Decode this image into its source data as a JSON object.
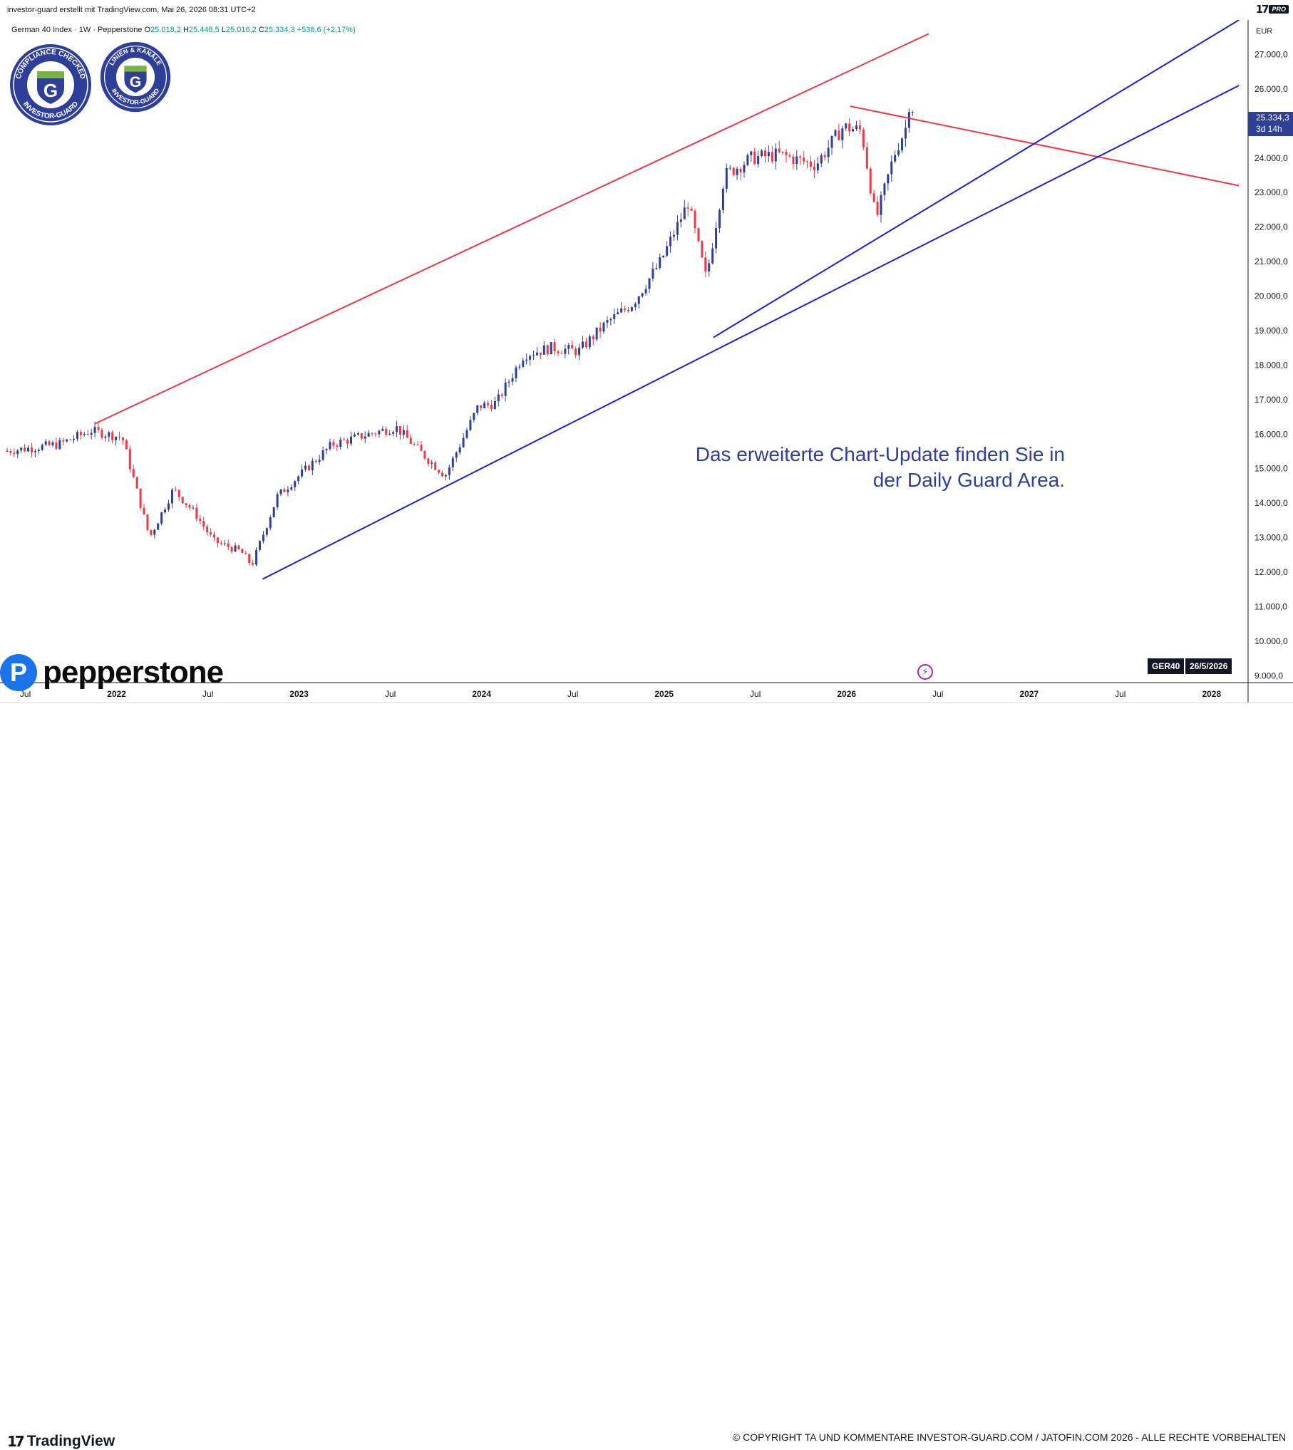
{
  "caption": "investor-guard erstellt mit TradingView.com, Mai 26, 2026 08:31 UTC+2",
  "brand": {
    "tv_mark": "17",
    "pro": "PRO",
    "footer_logo": "TradingView"
  },
  "symbol": {
    "name": "German 40 Index · 1W · Pepperstone",
    "o_label": "O",
    "o": "25.018,2",
    "h_label": "H",
    "h": "25.448,5",
    "l_label": "L",
    "l": "25.016,2",
    "c_label": "C",
    "c": "25.334,3",
    "chg": "+538,6 (+2,17%)"
  },
  "badges": [
    {
      "top": "COMPLIANCE CHECKED",
      "bottom": "INVESTOR-GUARD",
      "letter": "G"
    },
    {
      "top": "LINIEN & KANÄLE",
      "bottom": "INVESTOR-GUARD",
      "letter": "G"
    }
  ],
  "cta": {
    "line1": "Das erweiterte Chart-Update finden Sie in",
    "line2": "der Daily Guard Area."
  },
  "pepperstone": {
    "letter": "P",
    "word": "pepperstone"
  },
  "price_box": {
    "price": "25.334,3",
    "countdown": "3d 14h"
  },
  "tag": {
    "symbol": "GER40",
    "date": "26/5/2026"
  },
  "lightning_icon": "lightning-icon",
  "copyright": "© COPYRIGHT TA UND KOMMENTARE INVESTOR-GUARD.COM / JATOFIN.COM 2026 - ALLE RECHTE VORBEHALTEN",
  "colors": {
    "up": "#2e3f97",
    "down": "#f23645",
    "trend_red": "#f23645",
    "trend_blue": "#1f1fd6",
    "accent": "#2e3f97"
  },
  "chart_data": {
    "type": "candlestick",
    "title": "German 40 Index",
    "currency": "EUR",
    "ylim": [
      8800,
      28000
    ],
    "yticks": [
      "27.000,0",
      "26.000,0",
      "25.000,0",
      "24.000,0",
      "23.000,0",
      "22.000,0",
      "21.000,0",
      "20.000,0",
      "19.000,0",
      "18.000,0",
      "17.000,0",
      "16.000,0",
      "15.000,0",
      "14.000,0",
      "13.000,0",
      "12.000,0",
      "11.000,0",
      "10.000,0",
      "9.000,0"
    ],
    "ytick_values": [
      27000,
      26000,
      25000,
      24000,
      23000,
      22000,
      21000,
      20000,
      19000,
      18000,
      17000,
      16000,
      15000,
      14000,
      13000,
      12000,
      11000,
      10000,
      9000
    ],
    "xticks": [
      "Jul",
      "2022",
      "Jul",
      "2023",
      "Jul",
      "2024",
      "Jul",
      "2025",
      "Jul",
      "2026",
      "Jul",
      "2027",
      "Jul",
      "2028"
    ],
    "xtick_values": [
      2021.5,
      2022.0,
      2022.5,
      2023.0,
      2023.5,
      2024.0,
      2024.5,
      2025.0,
      2025.5,
      2026.0,
      2026.5,
      2027.0,
      2027.5,
      2028.0
    ],
    "xtick_bold": [
      false,
      true,
      false,
      true,
      false,
      true,
      false,
      true,
      false,
      true,
      false,
      true,
      false,
      true
    ],
    "xlim": [
      2021.4,
      2028.2
    ],
    "last_close": 25334.3,
    "anchors": [
      [
        2021.4,
        15500
      ],
      [
        2021.7,
        15700
      ],
      [
        2021.88,
        16100
      ],
      [
        2022.05,
        15900
      ],
      [
        2022.2,
        13000
      ],
      [
        2022.33,
        14400
      ],
      [
        2022.45,
        13700
      ],
      [
        2022.55,
        12900
      ],
      [
        2022.7,
        12600
      ],
      [
        2022.76,
        12200
      ],
      [
        2022.9,
        14200
      ],
      [
        2023.0,
        14700
      ],
      [
        2023.2,
        15700
      ],
      [
        2023.4,
        16000
      ],
      [
        2023.55,
        16200
      ],
      [
        2023.7,
        15400
      ],
      [
        2023.82,
        14800
      ],
      [
        2024.0,
        16800
      ],
      [
        2024.1,
        16900
      ],
      [
        2024.25,
        18300
      ],
      [
        2024.4,
        18500
      ],
      [
        2024.55,
        18400
      ],
      [
        2024.7,
        19200
      ],
      [
        2024.85,
        19800
      ],
      [
        2025.0,
        21000
      ],
      [
        2025.15,
        22700
      ],
      [
        2025.25,
        20500
      ],
      [
        2025.35,
        23500
      ],
      [
        2025.5,
        24000
      ],
      [
        2025.65,
        24100
      ],
      [
        2025.85,
        23800
      ],
      [
        2026.0,
        24900
      ],
      [
        2026.1,
        24800
      ],
      [
        2026.18,
        22200
      ],
      [
        2026.28,
        24100
      ],
      [
        2026.38,
        25334
      ]
    ],
    "trendlines": [
      {
        "color": "red",
        "from": [
          2021.88,
          16300
        ],
        "to": [
          2026.45,
          27600
        ]
      },
      {
        "color": "red",
        "from": [
          2026.02,
          25500
        ],
        "to": [
          2028.15,
          23200
        ]
      },
      {
        "color": "blue",
        "from": [
          2022.8,
          11800
        ],
        "to": [
          2028.15,
          26100
        ]
      },
      {
        "color": "blue",
        "from": [
          2025.27,
          18800
        ],
        "to": [
          2028.15,
          28000
        ]
      }
    ]
  }
}
